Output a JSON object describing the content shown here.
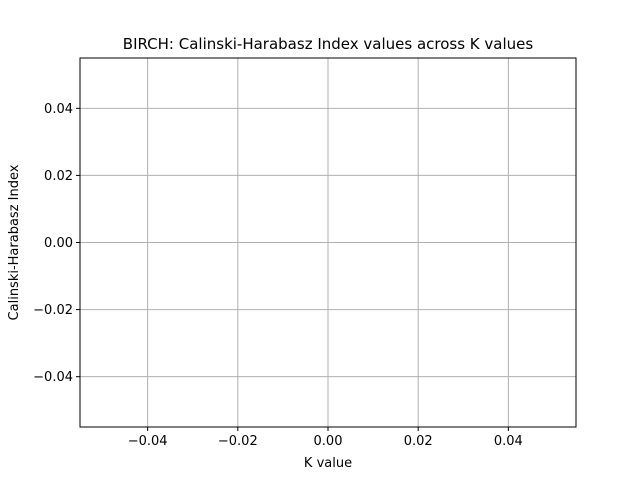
{
  "chart_data": {
    "type": "line",
    "title": "BIRCH: Calinski-Harabasz Index values across K values",
    "xlabel": "K value",
    "ylabel": "Calinski-Harabasz Index",
    "x": [],
    "series": [
      {
        "values": []
      }
    ],
    "xlim": [
      -0.055,
      0.055
    ],
    "ylim": [
      -0.055,
      0.055
    ],
    "xticks": [
      -0.04,
      -0.02,
      0.0,
      0.02,
      0.04
    ],
    "xtick_labels": [
      "−0.04",
      "−0.02",
      "0.00",
      "0.02",
      "0.04"
    ],
    "yticks": [
      -0.04,
      -0.02,
      0.0,
      0.02,
      0.04
    ],
    "ytick_labels": [
      "−0.04",
      "−0.02",
      "0.00",
      "0.02",
      "0.04"
    ],
    "grid": true,
    "line_color": "#1f77b4",
    "grid_color": "#b0b0b0"
  }
}
